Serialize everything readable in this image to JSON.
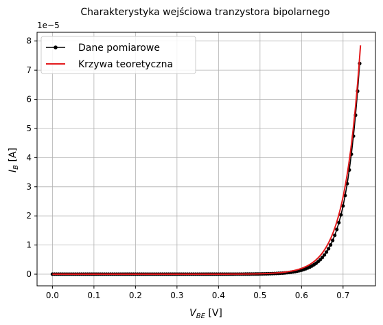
{
  "chart_data": {
    "type": "line",
    "title": "Charakterystyka wejściowa tranzystora bipolarnego",
    "xlabel_main": "V",
    "xlabel_sub": "BE",
    "xlabel_unit": " [V]",
    "ylabel_main": "I",
    "ylabel_sub": "B",
    "ylabel_unit": " [A]",
    "y_offset_text": "1e−5",
    "y_scale_exponent": -5,
    "xlim": [
      -0.037,
      0.778
    ],
    "ylim": [
      -0.4,
      8.3
    ],
    "x_ticks": [
      0.0,
      0.1,
      0.2,
      0.3,
      0.4,
      0.5,
      0.6,
      0.7
    ],
    "x_tick_labels": [
      "0.0",
      "0.1",
      "0.2",
      "0.3",
      "0.4",
      "0.5",
      "0.6",
      "0.7"
    ],
    "y_ticks": [
      0,
      1,
      2,
      3,
      4,
      5,
      6,
      7,
      8
    ],
    "y_tick_labels": [
      "0",
      "1",
      "2",
      "3",
      "4",
      "5",
      "6",
      "7",
      "8"
    ],
    "grid": true,
    "legend_position": "top-left",
    "series": [
      {
        "name": "Dane pomiarowe",
        "color": "#000000",
        "marker": "circle",
        "x_start": 0.0,
        "x_end": 0.742,
        "x_step": 0.005,
        "model": "exponential",
        "y_at_0_6": 0.14,
        "y_at_0_742": 7.65
      },
      {
        "name": "Krzywa teoretyczna",
        "color": "#e31a1c",
        "marker": "none",
        "x_start": 0.0,
        "x_end": 0.742,
        "x_step": 0.002,
        "model": "exponential",
        "y_at_0_6": 0.2,
        "y_at_0_742": 7.85
      }
    ]
  }
}
